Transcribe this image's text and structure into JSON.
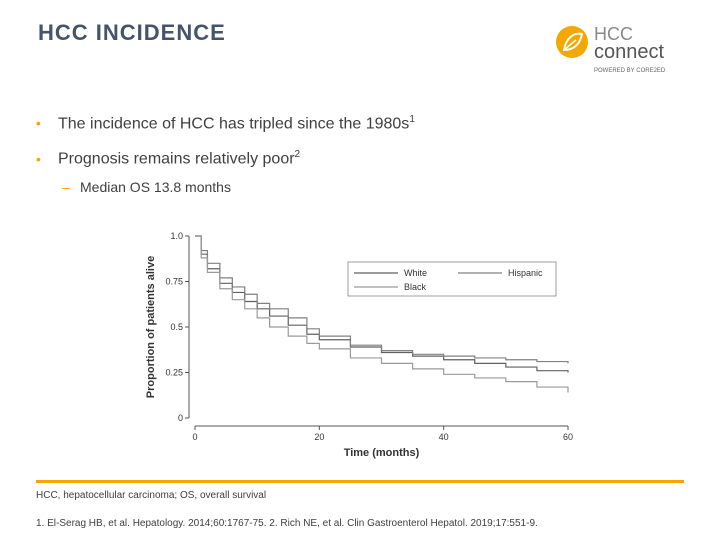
{
  "slide": {
    "title": "HCC INCIDENCE",
    "logo": {
      "line1": "HCC",
      "line2": "connect",
      "powered": "POWERED BY CORE2ED",
      "icon": "leaf-circle-icon"
    },
    "bullets": [
      {
        "text": "The incidence of HCC has tripled since the 1980s",
        "sup": "1"
      },
      {
        "text": "Prognosis remains relatively poor",
        "sup": "2"
      }
    ],
    "sub_bullet": "Median OS 13.8 months",
    "abbreviations": "HCC, hepatocellular carcinoma; OS, overall survival",
    "references": "1. El-Serag HB, et al. Hepatology. 2014;60:1767-75. 2. Rich NE, et al. Clin Gastroenterol Hepatol. 2019;17:551-9.",
    "colors": {
      "accent": "#f2a800",
      "title": "#44546a"
    }
  },
  "chart_data": {
    "type": "line",
    "title": "",
    "xlabel": "Time (months)",
    "ylabel": "Proportion of patients alive",
    "xlim": [
      0,
      60
    ],
    "ylim": [
      0,
      1.0
    ],
    "xticks": [
      "0",
      "20",
      "40",
      "60"
    ],
    "yticks": [
      "0",
      "0.25",
      "0.5",
      "0.75",
      "1.0"
    ],
    "legend": [
      "White",
      "Hispanic",
      "Black"
    ],
    "series": [
      {
        "name": "White",
        "color": "#606060",
        "x": [
          0,
          1,
          2,
          4,
          6,
          8,
          10,
          12,
          15,
          18,
          20,
          25,
          30,
          35,
          40,
          45,
          50,
          55,
          60
        ],
        "y": [
          1.0,
          0.9,
          0.82,
          0.74,
          0.69,
          0.64,
          0.6,
          0.56,
          0.51,
          0.46,
          0.43,
          0.39,
          0.36,
          0.34,
          0.32,
          0.3,
          0.28,
          0.26,
          0.25
        ]
      },
      {
        "name": "Hispanic",
        "color": "#808080",
        "x": [
          0,
          1,
          2,
          4,
          6,
          8,
          10,
          12,
          15,
          18,
          20,
          25,
          30,
          35,
          40,
          45,
          50,
          55,
          60
        ],
        "y": [
          1.0,
          0.92,
          0.85,
          0.77,
          0.72,
          0.68,
          0.63,
          0.6,
          0.55,
          0.49,
          0.45,
          0.4,
          0.37,
          0.35,
          0.34,
          0.33,
          0.32,
          0.31,
          0.3
        ]
      },
      {
        "name": "Black",
        "color": "#9a9a9a",
        "x": [
          0,
          1,
          2,
          4,
          6,
          8,
          10,
          12,
          15,
          18,
          20,
          25,
          30,
          35,
          40,
          45,
          50,
          55,
          60
        ],
        "y": [
          1.0,
          0.88,
          0.8,
          0.71,
          0.65,
          0.6,
          0.55,
          0.5,
          0.45,
          0.41,
          0.38,
          0.33,
          0.3,
          0.27,
          0.24,
          0.22,
          0.2,
          0.17,
          0.14
        ]
      }
    ]
  }
}
